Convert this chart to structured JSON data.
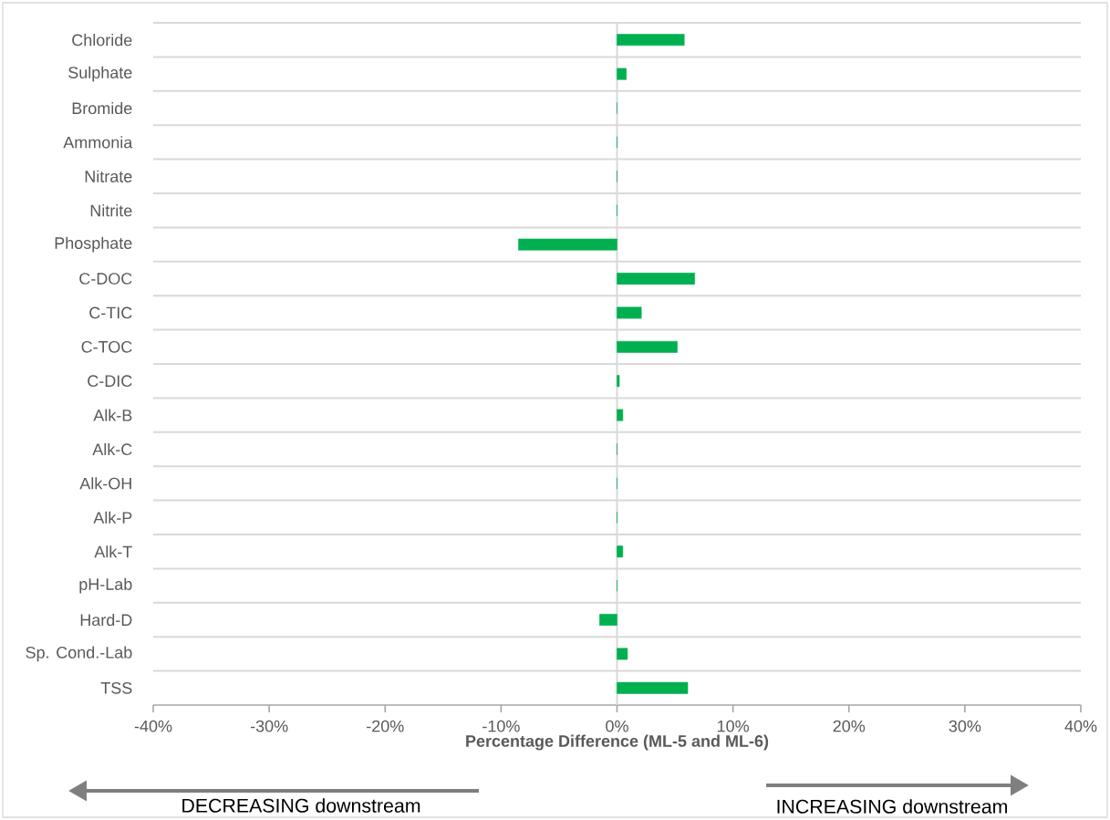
{
  "chart_data": {
    "type": "bar",
    "orientation": "horizontal",
    "xlabel": "Percentage Difference (ML-5 and ML-6)",
    "categories": [
      "Chloride",
      "Sulphate",
      "Bromide",
      "Ammonia",
      "Nitrate",
      "Nitrite",
      "Phosphate",
      "C-DOC",
      "C-TIC",
      "C-TOC",
      "C-DIC",
      "Alk-B",
      "Alk-C",
      "Alk-OH",
      "Alk-P",
      "Alk-T",
      "pH-Lab",
      "Hard-D",
      "Sp. Cond.-Lab",
      "TSS"
    ],
    "values": [
      5.8,
      0.8,
      0,
      0,
      0,
      0,
      -8.5,
      6.7,
      2.1,
      5.2,
      0.2,
      0.5,
      0,
      0,
      0,
      0.5,
      0,
      -1.5,
      0.9,
      6.1
    ],
    "color": "#00b050",
    "xlim": [
      -40,
      40
    ],
    "xticks": [
      {
        "value": -40,
        "label": "-40%"
      },
      {
        "value": -30,
        "label": "-30%"
      },
      {
        "value": -20,
        "label": "-20%"
      },
      {
        "value": -10,
        "label": "-10%"
      },
      {
        "value": 0,
        "label": "0%"
      },
      {
        "value": 10,
        "label": "10%"
      },
      {
        "value": 20,
        "label": "20%"
      },
      {
        "value": 30,
        "label": "30%"
      },
      {
        "value": 40,
        "label": "40%"
      }
    ],
    "grid": "y",
    "ref_lines": [
      {
        "axis": "x",
        "value": 0,
        "color": "#d9d9d9"
      }
    ],
    "annotations": [
      "DECREASING downstream",
      "INCREASING downstream"
    ]
  }
}
